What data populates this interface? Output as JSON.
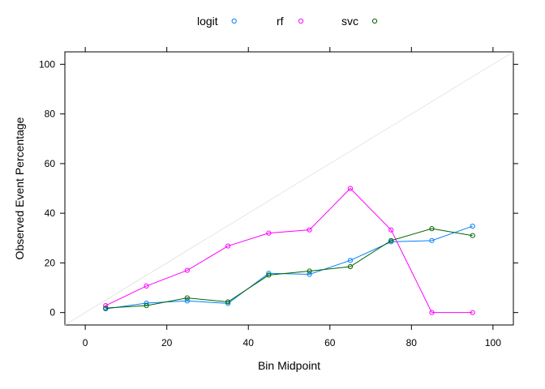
{
  "chart_data": {
    "type": "line",
    "xlabel": "Bin Midpoint",
    "ylabel": "Observed Event Percentage",
    "xlim": [
      -5,
      105
    ],
    "ylim": [
      -5,
      105
    ],
    "xticks": [
      0,
      20,
      40,
      60,
      80,
      100
    ],
    "yticks": [
      0,
      20,
      40,
      60,
      80,
      100
    ],
    "x": [
      5,
      15,
      25,
      35,
      45,
      55,
      65,
      75,
      85,
      95
    ],
    "reference_line": {
      "from": [
        0,
        0
      ],
      "to": [
        100,
        100
      ],
      "color": "#e6e6e6"
    },
    "legend_position": "top",
    "series": [
      {
        "name": "logit",
        "color": "#0080ff",
        "values": [
          1.5,
          3.8,
          4.7,
          3.7,
          15.8,
          15.4,
          21.0,
          28.5,
          29.0,
          34.8
        ]
      },
      {
        "name": "rf",
        "color": "#ff00ff",
        "values": [
          2.8,
          10.7,
          17.0,
          26.8,
          32.0,
          33.3,
          50.0,
          33.3,
          0.0,
          0.0
        ]
      },
      {
        "name": "svc",
        "color": "#006400",
        "values": [
          1.8,
          2.8,
          5.9,
          4.3,
          15.1,
          16.7,
          18.5,
          29.0,
          33.8,
          31.0
        ]
      }
    ]
  }
}
